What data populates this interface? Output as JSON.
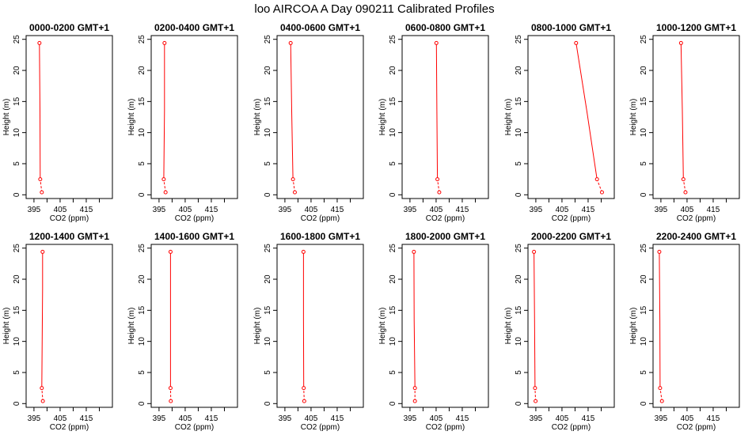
{
  "figure": {
    "title": "loo AIRCOA A  Day 090211  Calibrated Profiles"
  },
  "style": {
    "line_color": "#ff0000",
    "marker_color": "#ff0000",
    "axis_color": "#000000"
  },
  "axes": {
    "xlabel": "CO2 (ppm)",
    "ylabel": "Height (m)",
    "xlim": [
      392,
      425
    ],
    "ylim": [
      -0.6,
      25.6
    ],
    "xticks": [
      395,
      400,
      405,
      410,
      415,
      420
    ],
    "xtick_labels": [
      "395",
      "",
      "405",
      "",
      "415",
      ""
    ],
    "yticks": [
      0,
      5,
      10,
      15,
      20,
      25
    ],
    "ytick_labels": [
      "0",
      "5",
      "10",
      "15",
      "20",
      "25"
    ]
  },
  "chart_data": [
    {
      "type": "line",
      "title": "0000-0200 GMT+1",
      "x": [
        398.0,
        397.4,
        397.3,
        397.1
      ],
      "y": [
        0.4,
        2.5,
        13.5,
        24.4
      ]
    },
    {
      "type": "line",
      "title": "0200-0400 GMT+1",
      "x": [
        397.5,
        396.8,
        397.1,
        397.1
      ],
      "y": [
        0.4,
        2.5,
        13.5,
        24.4
      ]
    },
    {
      "type": "line",
      "title": "0400-0600 GMT+1",
      "x": [
        398.8,
        398.1,
        397.6,
        397.2
      ],
      "y": [
        0.4,
        2.5,
        13.5,
        24.4
      ]
    },
    {
      "type": "line",
      "title": "0600-0800 GMT+1",
      "x": [
        406.2,
        405.5,
        405.3,
        405.1
      ],
      "y": [
        0.4,
        2.5,
        13.5,
        24.4
      ]
    },
    {
      "type": "line",
      "title": "0800-1000 GMT+1",
      "x": [
        420.3,
        418.4,
        414.5,
        410.4
      ],
      "y": [
        0.4,
        2.5,
        13.5,
        24.4
      ]
    },
    {
      "type": "line",
      "title": "1000-1200 GMT+1",
      "x": [
        404.4,
        403.6,
        403.2,
        402.7
      ],
      "y": [
        0.4,
        2.5,
        13.5,
        24.4
      ]
    },
    {
      "type": "line",
      "title": "1200-1400 GMT+1",
      "x": [
        398.4,
        398.0,
        398.3,
        398.3
      ],
      "y": [
        0.4,
        2.5,
        18.5,
        24.4
      ]
    },
    {
      "type": "line",
      "title": "1400-1600 GMT+1",
      "x": [
        399.5,
        399.4,
        399.4,
        399.4
      ],
      "y": [
        0.4,
        2.5,
        13.5,
        24.4
      ]
    },
    {
      "type": "line",
      "title": "1600-1800 GMT+1",
      "x": [
        402.4,
        402.2,
        402.1,
        402.1
      ],
      "y": [
        0.4,
        2.5,
        13.5,
        24.4
      ]
    },
    {
      "type": "line",
      "title": "1800-2000 GMT+1",
      "x": [
        396.9,
        396.9,
        396.6,
        396.5
      ],
      "y": [
        0.4,
        2.5,
        13.5,
        24.4
      ]
    },
    {
      "type": "line",
      "title": "2000-2200 GMT+1",
      "x": [
        394.9,
        394.7,
        394.5,
        394.3
      ],
      "y": [
        0.4,
        2.5,
        13.5,
        24.4
      ]
    },
    {
      "type": "line",
      "title": "2200-2400 GMT+1",
      "x": [
        395.4,
        394.7,
        394.6,
        394.4
      ],
      "y": [
        0.4,
        2.5,
        13.5,
        24.4
      ]
    }
  ]
}
